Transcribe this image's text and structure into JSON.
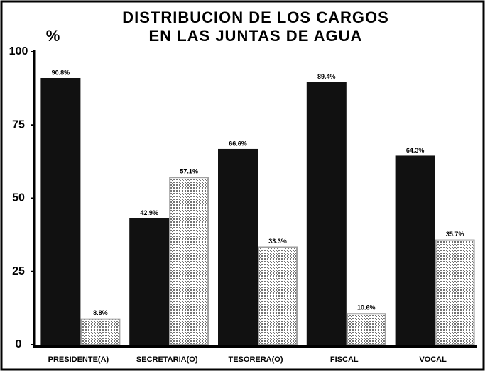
{
  "chart_data": {
    "type": "bar",
    "title": [
      "DISTRIBUCION DE LOS CARGOS",
      "EN LAS JUNTAS DE AGUA"
    ],
    "y_label": "%",
    "categories": [
      "PRESIDENTE(A)",
      "SECRETARIA(O)",
      "TESORERA(O)",
      "FISCAL",
      "VOCAL"
    ],
    "series": [
      {
        "color": "#111111",
        "values": [
          90.8,
          42.9,
          66.6,
          89.4,
          64.3
        ],
        "value_labels": [
          "90.8%",
          "42.9%",
          "66.6%",
          "89.4%",
          "64.3%"
        ]
      },
      {
        "color": "#a0a0a0",
        "values": [
          8.8,
          57.1,
          33.3,
          10.6,
          35.7
        ],
        "value_labels": [
          "8.8%",
          "57.1%",
          "33.3%",
          "10.6%",
          "35.7%"
        ]
      }
    ],
    "ylim": [
      0,
      100
    ],
    "yticks": [
      0,
      25,
      50,
      75,
      100
    ]
  }
}
